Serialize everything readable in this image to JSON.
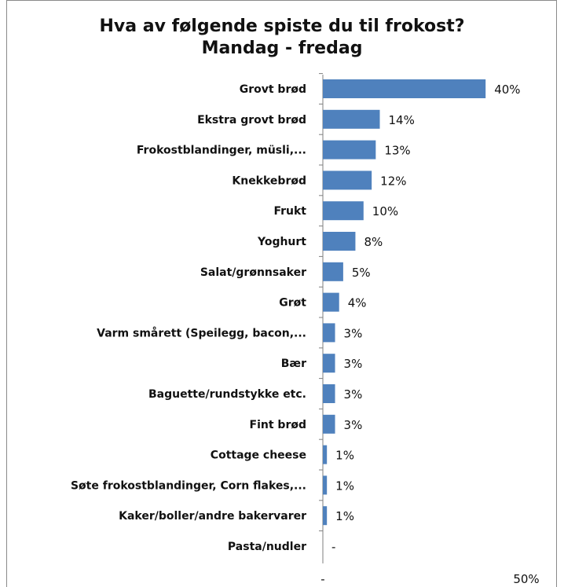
{
  "chart_data": {
    "type": "bar",
    "orientation": "horizontal",
    "title": "Hva av følgende spiste du til frokost?",
    "subtitle": "Mandag - fredag",
    "categories": [
      "Grovt brød",
      "Ekstra grovt brød",
      "Frokostblandinger, müsli,...",
      "Knekkebrød",
      "Frukt",
      "Yoghurt",
      "Salat/grønnsaker",
      "Grøt",
      "Varm smårett (Speilegg, bacon,...",
      "Bær",
      "Baguette/rundstykke etc.",
      "Fint brød",
      "Cottage cheese",
      "Søte frokostblandinger, Corn flakes,...",
      "Kaker/boller/andre bakervarer",
      "Pasta/nudler"
    ],
    "values": [
      40,
      14,
      13,
      12,
      10,
      8,
      5,
      4,
      3,
      3,
      3,
      3,
      1,
      1,
      1,
      0
    ],
    "value_labels": [
      "40%",
      "14%",
      "13%",
      "12%",
      "10%",
      "8%",
      "5%",
      "4%",
      "3%",
      "3%",
      "3%",
      "3%",
      "1%",
      "1%",
      "1%",
      "-"
    ],
    "xlim": [
      0,
      50
    ],
    "x_tick_labels": [
      "-",
      "50%"
    ],
    "bar_color": "#4f81bd",
    "grid": false,
    "legend": "none"
  }
}
